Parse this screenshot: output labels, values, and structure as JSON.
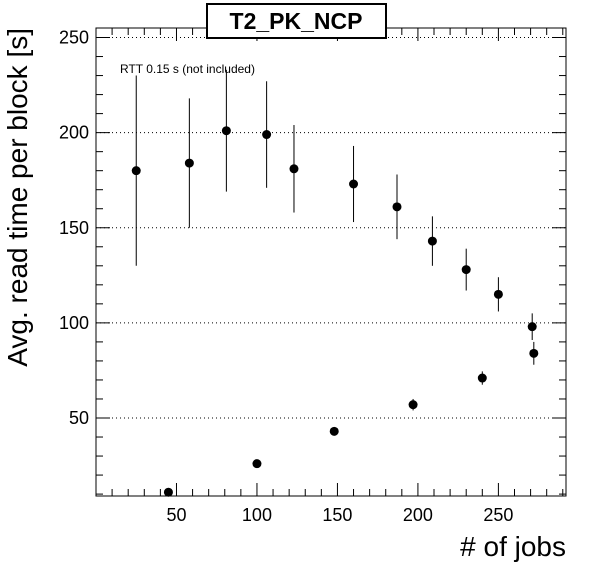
{
  "chart_data": {
    "type": "scatter",
    "title": "T2_PK_NCP",
    "xlabel": "# of jobs",
    "ylabel": "Avg. read time per block [s]",
    "annotation": "RTT 0.15 s (not included)",
    "xlim": [
      0,
      292
    ],
    "ylim": [
      9,
      255
    ],
    "x_ticks": [
      50,
      100,
      150,
      200,
      250
    ],
    "x_tick_labels": [
      "50",
      "100",
      "150",
      "200",
      "250"
    ],
    "y_ticks": [
      50,
      100,
      150,
      200,
      250
    ],
    "y_tick_labels": [
      "50",
      "100",
      "150",
      "200",
      "250"
    ],
    "grid": "horizontal dotted at major y ticks",
    "marker_color": "#000000",
    "points": [
      {
        "x": 25,
        "y": 180,
        "err_low": 50,
        "err_high": 50
      },
      {
        "x": 45,
        "y": 11,
        "err_low": 1,
        "err_high": 1
      },
      {
        "x": 58,
        "y": 184,
        "err_low": 34,
        "err_high": 34
      },
      {
        "x": 81,
        "y": 201,
        "err_low": 32,
        "err_high": 32
      },
      {
        "x": 100,
        "y": 26,
        "err_low": 1,
        "err_high": 1
      },
      {
        "x": 106,
        "y": 199,
        "err_low": 28,
        "err_high": 28
      },
      {
        "x": 123,
        "y": 181,
        "err_low": 23,
        "err_high": 23
      },
      {
        "x": 148,
        "y": 43,
        "err_low": 1.5,
        "err_high": 1.5
      },
      {
        "x": 160,
        "y": 173,
        "err_low": 20,
        "err_high": 20
      },
      {
        "x": 187,
        "y": 161,
        "err_low": 17,
        "err_high": 17
      },
      {
        "x": 197,
        "y": 57,
        "err_low": 3,
        "err_high": 3
      },
      {
        "x": 209,
        "y": 143,
        "err_low": 13,
        "err_high": 13
      },
      {
        "x": 230,
        "y": 128,
        "err_low": 11,
        "err_high": 11
      },
      {
        "x": 240,
        "y": 71,
        "err_low": 3.5,
        "err_high": 3.5
      },
      {
        "x": 250,
        "y": 115,
        "err_low": 9,
        "err_high": 9
      },
      {
        "x": 271,
        "y": 98,
        "err_low": 7,
        "err_high": 7
      },
      {
        "x": 272,
        "y": 84,
        "err_low": 6,
        "err_high": 6
      }
    ]
  }
}
